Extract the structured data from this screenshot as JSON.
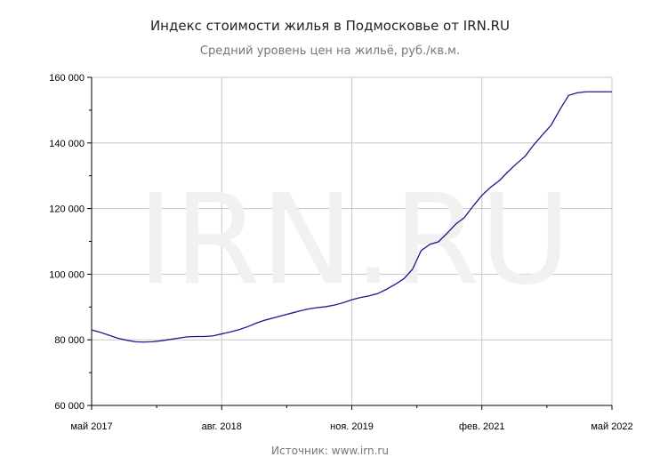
{
  "chart_data": {
    "type": "line",
    "title": "Индекс стоимости жилья в Подмосковье от IRN.RU",
    "subtitle": "Средний уровень цен на жильё, руб./кв.м.",
    "source": "Источник: www.irn.ru",
    "watermark": "IRN.RU",
    "xlim": [
      "2017-05",
      "2022-05"
    ],
    "ylim": [
      60000,
      160000
    ],
    "y_ticks": [
      60000,
      80000,
      100000,
      120000,
      140000,
      160000
    ],
    "y_tick_labels": [
      "60 000",
      "80 000",
      "100 000",
      "120 000",
      "140 000",
      "160 000"
    ],
    "x_ticks": [
      "2017-05",
      "2018-08",
      "2019-11",
      "2021-02",
      "2022-05"
    ],
    "x_tick_labels": [
      "май 2017",
      "авг. 2018",
      "ноя. 2019",
      "фев. 2021",
      "май 2022"
    ],
    "grid": true,
    "line_color": "#1a1a8c",
    "x": [
      "2017-05",
      "2017-06",
      "2017-07",
      "2017-08",
      "2017-09",
      "2017-10",
      "2017-11",
      "2017-12",
      "2018-01",
      "2018-02",
      "2018-03",
      "2018-04",
      "2018-05",
      "2018-06",
      "2018-07",
      "2018-08",
      "2018-09",
      "2018-10",
      "2018-11",
      "2018-12",
      "2019-01",
      "2019-02",
      "2019-03",
      "2019-04",
      "2019-05",
      "2019-06",
      "2019-07",
      "2019-08",
      "2019-09",
      "2019-10",
      "2019-11",
      "2019-12",
      "2020-01",
      "2020-02",
      "2020-03",
      "2020-04",
      "2020-05",
      "2020-06",
      "2020-07",
      "2020-08",
      "2020-09",
      "2020-10",
      "2020-11",
      "2020-12",
      "2021-01",
      "2021-02",
      "2021-03",
      "2021-04",
      "2021-05",
      "2021-06",
      "2021-07",
      "2021-08",
      "2021-09",
      "2021-10",
      "2021-11",
      "2021-12",
      "2022-01",
      "2022-02",
      "2022-03",
      "2022-04",
      "2022-05"
    ],
    "values": [
      83000,
      82300,
      81400,
      80500,
      79900,
      79400,
      79300,
      79400,
      79700,
      80100,
      80500,
      80900,
      81000,
      81000,
      81200,
      81800,
      82400,
      83100,
      84000,
      85100,
      86000,
      86700,
      87400,
      88100,
      88800,
      89400,
      89800,
      90100,
      90600,
      91300,
      92200,
      92900,
      93400,
      94100,
      95400,
      96900,
      98600,
      101500,
      107200,
      109100,
      109900,
      112500,
      115300,
      117300,
      120800,
      124000,
      126500,
      128500,
      131200,
      133700,
      136000,
      139500,
      142500,
      145500,
      150200,
      154500,
      155300,
      155600,
      155600,
      155600,
      155600
    ]
  }
}
